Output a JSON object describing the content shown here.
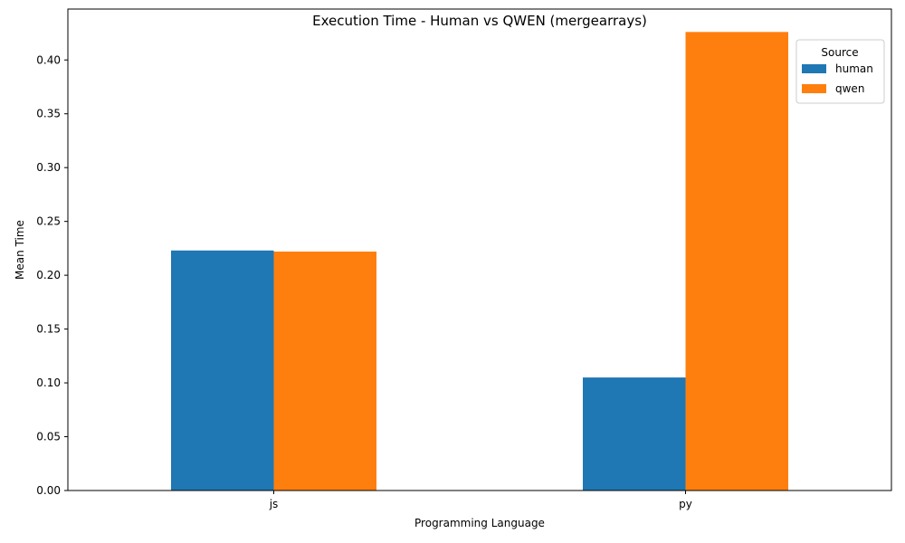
{
  "chart_data": {
    "type": "bar",
    "title": "Execution Time - Human vs QWEN (mergearrays)",
    "xlabel": "Programming Language",
    "ylabel": "Mean Time",
    "categories": [
      "js",
      "py"
    ],
    "series": [
      {
        "name": "human",
        "values": [
          0.223,
          0.105
        ],
        "color": "#1f77b4"
      },
      {
        "name": "qwen",
        "values": [
          0.222,
          0.426
        ],
        "color": "#ff7f0e"
      }
    ],
    "ylim": [
      0,
      0.4473
    ],
    "yticks": [
      "0.00",
      "0.05",
      "0.10",
      "0.15",
      "0.20",
      "0.25",
      "0.30",
      "0.35",
      "0.40"
    ],
    "grid": false,
    "legend": {
      "title": "Source",
      "placement": "top-right"
    }
  }
}
